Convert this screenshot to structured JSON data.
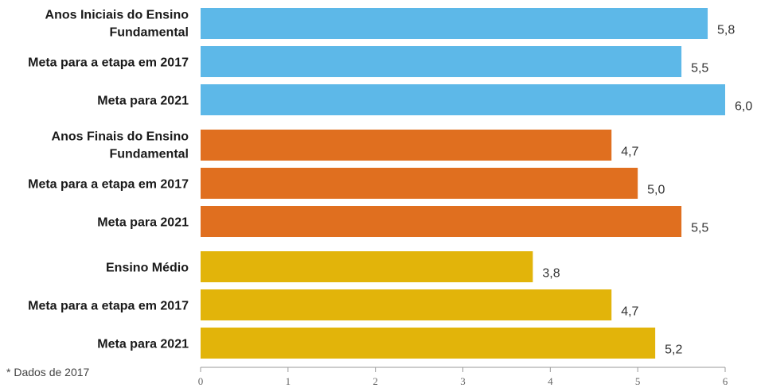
{
  "chart_data": {
    "type": "bar",
    "orientation": "horizontal",
    "categories": [
      [
        "Anos Iniciais do Ensino",
        "Fundamental"
      ],
      [
        "Meta para a etapa em 2017"
      ],
      [
        "Meta para 2021"
      ],
      [
        "Anos Finais do Ensino",
        "Fundamental"
      ],
      [
        "Meta para a etapa em 2017"
      ],
      [
        "Meta para 2021"
      ],
      [
        "Ensino Médio"
      ],
      [
        "Meta para a etapa em 2017"
      ],
      [
        "Meta para 2021"
      ]
    ],
    "values": [
      5.8,
      5.5,
      6.0,
      4.7,
      5.0,
      5.5,
      3.8,
      4.7,
      5.2
    ],
    "value_labels": [
      "5,8",
      "5,5",
      "6,0",
      "4,7",
      "5,0",
      "5,5",
      "3,8",
      "4,7",
      "5,2"
    ],
    "groups": [
      0,
      0,
      0,
      1,
      1,
      1,
      2,
      2,
      2
    ],
    "group_colors": [
      "#5db8e8",
      "#e06f1f",
      "#e2b40a"
    ],
    "xlim": [
      0,
      6
    ],
    "xticks": [
      "0",
      "1",
      "2",
      "3",
      "4",
      "5",
      "6"
    ],
    "grid": false
  },
  "footnote": "* Dados de 2017"
}
